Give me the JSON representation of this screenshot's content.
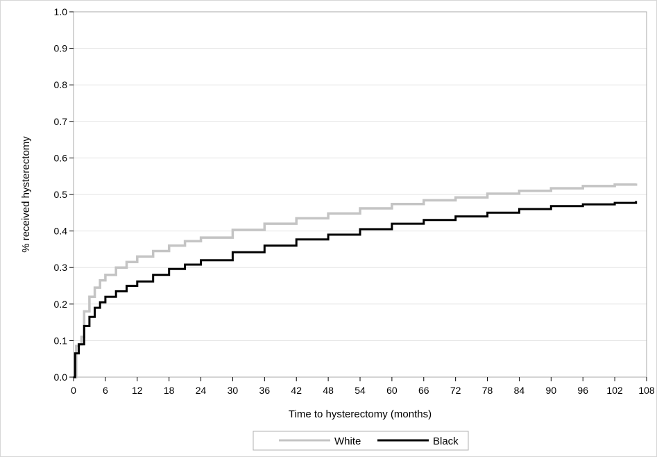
{
  "chart_data": {
    "type": "line",
    "step": true,
    "xlabel": "Time to hysterectomy (months)",
    "ylabel": "% received hysterectomy",
    "xlim": [
      0,
      108
    ],
    "ylim": [
      0.0,
      1.0
    ],
    "x_ticks": [
      "0",
      "6",
      "12",
      "18",
      "24",
      "30",
      "36",
      "42",
      "48",
      "54",
      "60",
      "66",
      "72",
      "78",
      "84",
      "90",
      "96",
      "102",
      "108"
    ],
    "y_ticks": [
      "0.0",
      "0.1",
      "0.2",
      "0.3",
      "0.4",
      "0.5",
      "0.6",
      "0.7",
      "0.8",
      "0.9",
      "1.0"
    ],
    "grid": "horizontal",
    "legend_position": "bottom-center",
    "series": [
      {
        "name": "White",
        "color": "#c4c4c4",
        "x": [
          0,
          0.5,
          1,
          1.5,
          2,
          3,
          4,
          5,
          6,
          8,
          10,
          12,
          15,
          18,
          21,
          24,
          30,
          36,
          42,
          48,
          54,
          60,
          66,
          72,
          78,
          84,
          90,
          96,
          102,
          106
        ],
        "y": [
          0.0,
          0.085,
          0.09,
          0.11,
          0.18,
          0.22,
          0.245,
          0.265,
          0.28,
          0.3,
          0.315,
          0.33,
          0.345,
          0.36,
          0.372,
          0.382,
          0.403,
          0.42,
          0.435,
          0.448,
          0.462,
          0.474,
          0.484,
          0.492,
          0.502,
          0.51,
          0.517,
          0.523,
          0.527,
          0.53
        ]
      },
      {
        "name": "Black",
        "color": "#000000",
        "x": [
          0,
          0.3,
          1,
          2,
          3,
          4,
          5,
          6,
          8,
          10,
          12,
          15,
          18,
          21,
          24,
          30,
          36,
          42,
          48,
          54,
          60,
          66,
          72,
          78,
          84,
          90,
          96,
          102,
          106
        ],
        "y": [
          0.0,
          0.065,
          0.09,
          0.14,
          0.165,
          0.19,
          0.205,
          0.22,
          0.235,
          0.25,
          0.262,
          0.28,
          0.296,
          0.308,
          0.32,
          0.342,
          0.36,
          0.377,
          0.39,
          0.405,
          0.42,
          0.43,
          0.44,
          0.45,
          0.46,
          0.468,
          0.473,
          0.477,
          0.482
        ]
      }
    ]
  }
}
